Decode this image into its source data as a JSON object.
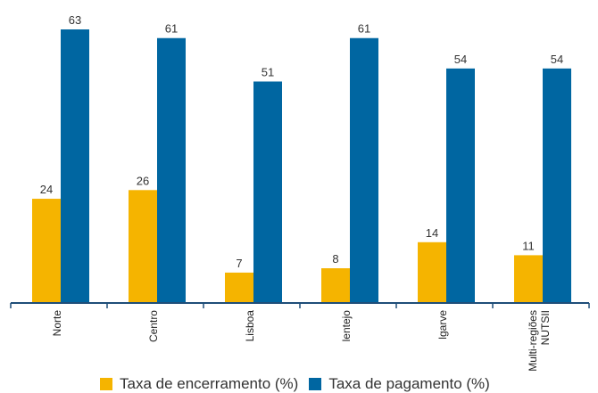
{
  "chart_data": {
    "type": "bar",
    "categories": [
      "Norte",
      "Centro",
      "Lisboa",
      "lentejo",
      "lgarve",
      "Multi-regiões NUTSII"
    ],
    "category_lines": [
      [
        "Norte"
      ],
      [
        "Centro"
      ],
      [
        "Lisboa"
      ],
      [
        "lentejo"
      ],
      [
        "lgarve"
      ],
      [
        "Multi-regiões",
        "NUTSII"
      ]
    ],
    "series": [
      {
        "name": "Taxa de encerramento (%)",
        "values": [
          24,
          26,
          7,
          8,
          14,
          11
        ],
        "color": "#F5B400"
      },
      {
        "name": "Taxa de pagamento (%)",
        "values": [
          63,
          61,
          51,
          61,
          54,
          54
        ],
        "color": "#0066A1"
      }
    ],
    "title": "",
    "xlabel": "",
    "ylabel": "",
    "ylim": [
      0,
      63
    ],
    "grid": false,
    "legend_position": "bottom",
    "axis_color": "#1F4E79"
  }
}
